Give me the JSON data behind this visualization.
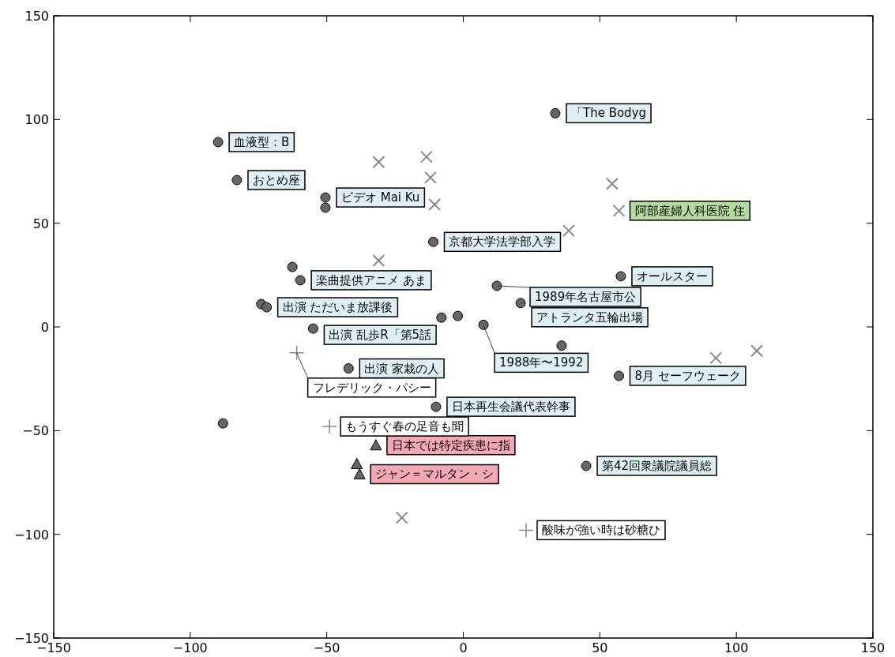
{
  "chart_data": {
    "type": "scatter",
    "xlim": [
      -150,
      150
    ],
    "ylim": [
      -150,
      150
    ],
    "xticks": [
      {
        "value": -150,
        "label": "−150"
      },
      {
        "value": -100,
        "label": "−100"
      },
      {
        "value": -50,
        "label": "−50"
      },
      0,
      50,
      100,
      150
    ],
    "yticks": [
      {
        "value": -150,
        "label": "−150"
      },
      {
        "value": -100,
        "label": "−100"
      },
      {
        "value": -50,
        "label": "−50"
      },
      0,
      50,
      100,
      150
    ],
    "grid": false,
    "series": [
      {
        "color": "#666666",
        "marker": "circle",
        "x": [
          -89.8,
          -82.9,
          -50.5,
          -50.5,
          -11,
          -62.6,
          -59.7,
          -74,
          -72,
          -55,
          -42,
          -10,
          -88,
          36,
          21,
          -8,
          -2,
          57.7,
          57,
          45,
          33.7,
          7.4,
          12.3
        ],
        "values": [
          89.1,
          70.8,
          62.4,
          57.5,
          41,
          28.9,
          22.5,
          11,
          9.5,
          -0.8,
          -20,
          -38.5,
          -46.5,
          -9,
          11.5,
          4.5,
          5.3,
          24.4,
          -23.6,
          -67,
          103,
          1,
          19.8
        ]
      },
      {
        "color": "#888888",
        "marker": "cross",
        "x": [
          -31,
          -13.5,
          -12,
          -10.5,
          54.5,
          57,
          92.5,
          107.5,
          -22.5,
          -31,
          38.6
        ],
        "values": [
          79.5,
          82,
          72,
          59,
          69,
          56,
          -15,
          -11.5,
          -92,
          32,
          46.4
        ]
      },
      {
        "color": "#666666",
        "marker": "triangle",
        "x": [
          -32,
          -39,
          -38
        ],
        "values": [
          -57,
          -66,
          -71
        ]
      },
      {
        "color": "#888888",
        "marker": "plus",
        "x": [
          -61,
          23,
          -49
        ],
        "values": [
          -12.5,
          -98,
          -48
        ]
      }
    ],
    "annotations": [
      {
        "text": "血液型：B",
        "x": -89.8,
        "y": 89.1
      },
      {
        "text": "おとめ座",
        "x": -82.9,
        "y": 70.8
      },
      {
        "text": "ビデオ Mai Ku",
        "x": -50.5,
        "y": 62.4
      },
      {
        "text": "京都大学法学部入学",
        "x": -11,
        "y": 41
      },
      {
        "text": "楽曲提供アニメ あま",
        "x": -59.7,
        "y": 22.5
      },
      {
        "text": "出演 ただいま放課後",
        "x": -72,
        "y": 9.5
      },
      {
        "text": "出演 乱歩R「第5話",
        "x": -55,
        "y": -0.8
      },
      {
        "text": "出演 家栽の人",
        "x": -42,
        "y": -20
      },
      {
        "text": "1989年名古屋市公",
        "x": 12.3,
        "y": 19.8
      },
      {
        "text": "アトランタ五輪出場",
        "x": 21,
        "y": 11.5
      },
      {
        "text": "1988年〜1992",
        "x": 7.4,
        "y": 1
      },
      {
        "text": "オールスター",
        "x": 57.7,
        "y": 24.4
      },
      {
        "text": "8月 セーフウェーク",
        "x": 57,
        "y": -23.6
      },
      {
        "text": "第42回衆議院議員総",
        "x": 45,
        "y": -67
      },
      {
        "text": "「The Bodyg",
        "x": 33.7,
        "y": 103
      },
      {
        "text": "日本再生会議代表幹事",
        "x": -10,
        "y": -38.5
      },
      {
        "text": "阿部産婦人科医院 住",
        "x": 57,
        "y": 56
      },
      {
        "text": "日本では特定疾患に指",
        "x": -32,
        "y": -57
      },
      {
        "text": "ジャン＝マルタン・シ",
        "x": -38,
        "y": -71
      },
      {
        "text": "フレデリック・パシー",
        "x": -61,
        "y": -12.5
      },
      {
        "text": "もうすぐ春の足音も聞",
        "x": -49,
        "y": -48
      },
      {
        "text": "酸味が強い時は砂糖ひ",
        "x": 23,
        "y": -98
      }
    ]
  }
}
